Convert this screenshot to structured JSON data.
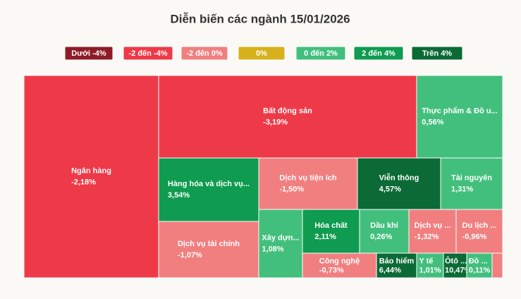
{
  "chart_data": {
    "type": "treemap",
    "title": "Diễn biến các ngành 15/01/2026",
    "legend": [
      {
        "name": "Dưới -4%",
        "color": "#8e1b26"
      },
      {
        "name": "-2 đến -4%",
        "color": "#ee3a48"
      },
      {
        "name": "-2 đến 0%",
        "color": "#f17f80"
      },
      {
        "name": "0%",
        "color": "#d6b11c"
      },
      {
        "name": "0 đến 2%",
        "color": "#42bf7d"
      },
      {
        "name": "2 đến 4%",
        "color": "#0f9b50"
      },
      {
        "name": "Trên 4%",
        "color": "#0b6a35"
      }
    ],
    "categories": [
      "Ngân hàng",
      "Bất động sản",
      "Thực phẩm & Đồ u...",
      "Hàng hóa và dịch vụ...",
      "Dịch vụ tài chính",
      "Dịch vụ tiện ích",
      "Viễn thông",
      "Tài nguyên",
      "Xây dựn...",
      "Hóa chất",
      "Dầu khí",
      "Dịch vụ ...",
      "Du lịch ...",
      "Công nghệ",
      "Bảo hiểm",
      "Y tế",
      "Ôtô ...",
      "Đồ ...",
      null
    ],
    "values": [
      -2.18,
      -3.19,
      0.56,
      3.54,
      -1.07,
      -1.5,
      4.57,
      1.31,
      1.08,
      2.11,
      0.26,
      -1.32,
      -0.96,
      -0.73,
      6.44,
      1.01,
      10.47,
      0.11,
      null
    ],
    "value_labels": [
      "-2,18%",
      "-3,19%",
      "0,56%",
      "3,54%",
      "-1,07%",
      "-1,50%",
      "4,57%",
      "1,31%",
      "1,08%",
      "2,11%",
      "0,26%",
      "-1,32%",
      "-0,96%",
      "-0,73%",
      "6,44%",
      "1,01%",
      "10,47%",
      "0,11%",
      null
    ],
    "colors": [
      "#ee3a48",
      "#ee3a48",
      "#42bf7d",
      "#0f9b50",
      "#f17f80",
      "#f17f80",
      "#0b6a35",
      "#42bf7d",
      "#42bf7d",
      "#0f9b50",
      "#42bf7d",
      "#f17f80",
      "#f17f80",
      "#f17f80",
      "#0b6a35",
      "#42bf7d",
      "#0b6a35",
      "#42bf7d",
      "#f17f80"
    ]
  }
}
